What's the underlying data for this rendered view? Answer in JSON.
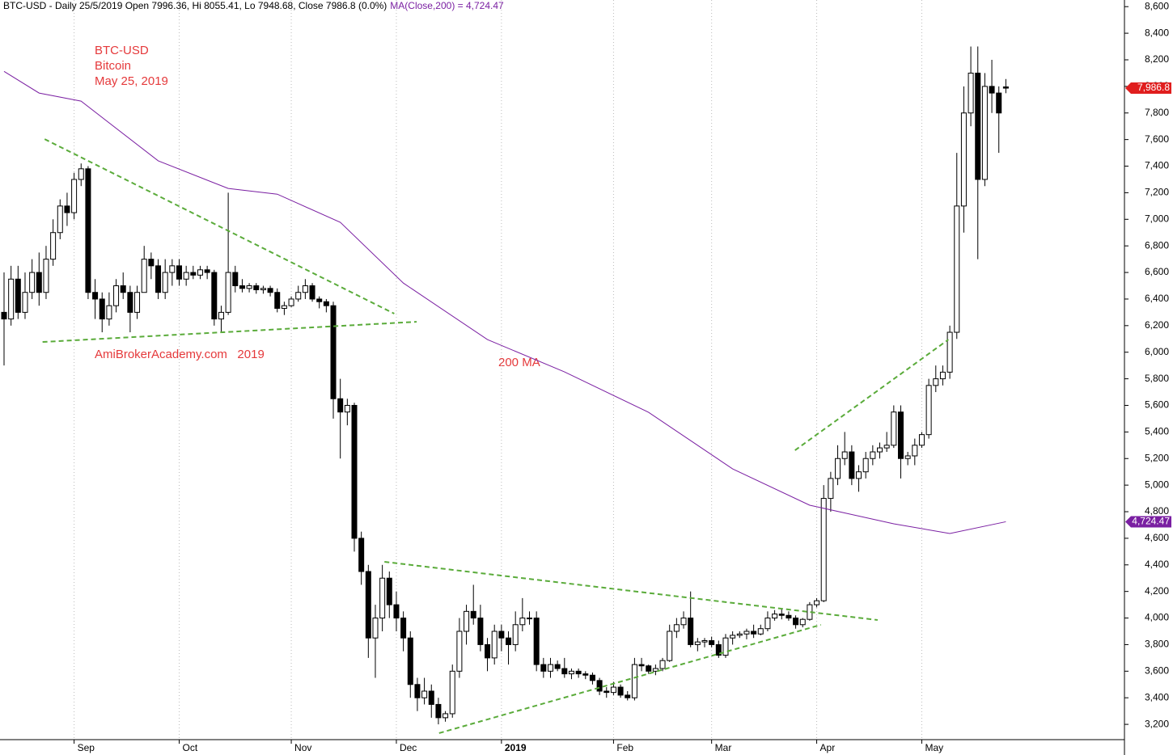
{
  "chart_data": {
    "type": "candlestick",
    "title": "BTC-USD - Daily 25/5/2019 Open 7996.36, Hi 8055.41, Lo 7948.68, Close 7986.8 (0.0%)",
    "title_ma": "MA(Close,200) = 4,724.47",
    "annotations": [
      "BTC-USD",
      "Bitcoin",
      "May 25, 2019",
      "AmiBrokerAcademy.com   2019",
      "200 MA"
    ],
    "categories": [
      null,
      null,
      null,
      null,
      null,
      null,
      null,
      null,
      null,
      null,
      "Sep",
      null,
      null,
      null,
      null,
      null,
      null,
      null,
      null,
      null,
      null,
      null,
      null,
      null,
      null,
      "Oct",
      null,
      null,
      null,
      null,
      null,
      null,
      null,
      null,
      null,
      null,
      null,
      null,
      null,
      null,
      null,
      "Nov",
      null,
      null,
      null,
      null,
      null,
      null,
      null,
      null,
      null,
      null,
      null,
      null,
      null,
      null,
      "Dec",
      null,
      null,
      null,
      null,
      null,
      null,
      null,
      null,
      null,
      null,
      null,
      null,
      null,
      null,
      "2019",
      null,
      null,
      null,
      null,
      null,
      null,
      null,
      null,
      null,
      null,
      null,
      null,
      null,
      null,
      null,
      "Feb",
      null,
      null,
      null,
      null,
      null,
      null,
      null,
      null,
      null,
      null,
      null,
      null,
      null,
      "Mar",
      null,
      null,
      null,
      null,
      null,
      null,
      null,
      null,
      null,
      null,
      null,
      null,
      null,
      null,
      "Apr",
      null,
      null,
      null,
      null,
      null,
      null,
      null,
      null,
      null,
      null,
      null,
      null,
      null,
      null,
      "May",
      null,
      null,
      null,
      null,
      null,
      null,
      null,
      null,
      null,
      null,
      null,
      null
    ],
    "ohlc": [
      [
        6300,
        6600,
        5900,
        6250
      ],
      [
        6250,
        6650,
        6200,
        6550
      ],
      [
        6550,
        6650,
        6250,
        6300
      ],
      [
        6300,
        6600,
        6250,
        6450
      ],
      [
        6450,
        6700,
        6400,
        6600
      ],
      [
        6600,
        6750,
        6350,
        6450
      ],
      [
        6450,
        6800,
        6400,
        6700
      ],
      [
        6700,
        7000,
        6650,
        6900
      ],
      [
        6900,
        7150,
        6850,
        7100
      ],
      [
        7100,
        7200,
        6950,
        7050
      ],
      [
        7050,
        7350,
        7000,
        7300
      ],
      [
        7300,
        7420,
        7250,
        7380
      ],
      [
        7380,
        7400,
        6400,
        6450
      ],
      [
        6450,
        6550,
        6250,
        6400
      ],
      [
        6400,
        6450,
        6150,
        6250
      ],
      [
        6250,
        6450,
        6200,
        6350
      ],
      [
        6350,
        6550,
        6300,
        6500
      ],
      [
        6500,
        6600,
        6400,
        6450
      ],
      [
        6450,
        6500,
        6150,
        6300
      ],
      [
        6300,
        6500,
        6250,
        6450
      ],
      [
        6450,
        6800,
        6450,
        6700
      ],
      [
        6700,
        6750,
        6550,
        6650
      ],
      [
        6650,
        6700,
        6400,
        6450
      ],
      [
        6450,
        6700,
        6400,
        6600
      ],
      [
        6600,
        6700,
        6500,
        6650
      ],
      [
        6650,
        6700,
        6500,
        6550
      ],
      [
        6550,
        6650,
        6500,
        6600
      ],
      [
        6600,
        6650,
        6550,
        6580
      ],
      [
        6580,
        6650,
        6550,
        6620
      ],
      [
        6620,
        6650,
        6550,
        6600
      ],
      [
        6600,
        6620,
        6200,
        6250
      ],
      [
        6250,
        6350,
        6150,
        6300
      ],
      [
        6300,
        7200,
        6280,
        6600
      ],
      [
        6600,
        6650,
        6450,
        6500
      ],
      [
        6500,
        6550,
        6450,
        6480
      ],
      [
        6480,
        6520,
        6450,
        6500
      ],
      [
        6500,
        6520,
        6440,
        6470
      ],
      [
        6470,
        6500,
        6440,
        6480
      ],
      [
        6480,
        6500,
        6420,
        6450
      ],
      [
        6450,
        6480,
        6300,
        6330
      ],
      [
        6330,
        6380,
        6280,
        6350
      ],
      [
        6350,
        6420,
        6340,
        6400
      ],
      [
        6400,
        6500,
        6380,
        6450
      ],
      [
        6450,
        6550,
        6400,
        6500
      ],
      [
        6500,
        6520,
        6380,
        6400
      ],
      [
        6400,
        6420,
        6330,
        6380
      ],
      [
        6380,
        6400,
        6300,
        6350
      ],
      [
        6350,
        6380,
        5500,
        5650
      ],
      [
        5650,
        5800,
        5200,
        5550
      ],
      [
        5550,
        5650,
        5450,
        5600
      ],
      [
        5600,
        5620,
        4500,
        4600
      ],
      [
        4600,
        4650,
        4250,
        4350
      ],
      [
        4350,
        4400,
        3700,
        3850
      ],
      [
        3850,
        4100,
        3550,
        4000
      ],
      [
        4000,
        4400,
        3900,
        4300
      ],
      [
        4300,
        4350,
        4000,
        4100
      ],
      [
        4100,
        4200,
        3900,
        4000
      ],
      [
        4000,
        4050,
        3750,
        3850
      ],
      [
        3850,
        3900,
        3400,
        3500
      ],
      [
        3500,
        3550,
        3300,
        3400
      ],
      [
        3400,
        3550,
        3350,
        3450
      ],
      [
        3450,
        3500,
        3250,
        3350
      ],
      [
        3350,
        3400,
        3200,
        3250
      ],
      [
        3250,
        3300,
        3220,
        3280
      ],
      [
        3280,
        3650,
        3250,
        3600
      ],
      [
        3600,
        4000,
        3550,
        3900
      ],
      [
        3900,
        4100,
        3800,
        4050
      ],
      [
        4050,
        4250,
        3950,
        4000
      ],
      [
        4000,
        4100,
        3750,
        3800
      ],
      [
        3800,
        3850,
        3600,
        3700
      ],
      [
        3700,
        3950,
        3650,
        3900
      ],
      [
        3900,
        3950,
        3750,
        3850
      ],
      [
        3850,
        3900,
        3650,
        3800
      ],
      [
        3800,
        4050,
        3750,
        3950
      ],
      [
        3950,
        4150,
        3900,
        4000
      ],
      [
        4000,
        4050,
        3950,
        4000
      ],
      [
        4000,
        4050,
        3600,
        3650
      ],
      [
        3650,
        3700,
        3550,
        3600
      ],
      [
        3600,
        3700,
        3550,
        3650
      ],
      [
        3650,
        3680,
        3600,
        3620
      ],
      [
        3620,
        3700,
        3550,
        3580
      ],
      [
        3580,
        3620,
        3540,
        3600
      ],
      [
        3600,
        3620,
        3550,
        3580
      ],
      [
        3580,
        3600,
        3540,
        3570
      ],
      [
        3570,
        3590,
        3500,
        3530
      ],
      [
        3530,
        3550,
        3420,
        3450
      ],
      [
        3450,
        3480,
        3400,
        3440
      ],
      [
        3440,
        3520,
        3420,
        3480
      ],
      [
        3480,
        3500,
        3400,
        3420
      ],
      [
        3420,
        3450,
        3380,
        3400
      ],
      [
        3400,
        3700,
        3380,
        3650
      ],
      [
        3650,
        3700,
        3600,
        3640
      ],
      [
        3640,
        3650,
        3580,
        3600
      ],
      [
        3600,
        3650,
        3570,
        3620
      ],
      [
        3620,
        3700,
        3600,
        3680
      ],
      [
        3680,
        3950,
        3670,
        3900
      ],
      [
        3900,
        4000,
        3850,
        3950
      ],
      [
        3950,
        4050,
        3920,
        4000
      ],
      [
        4000,
        4200,
        3780,
        3800
      ],
      [
        3800,
        3850,
        3750,
        3820
      ],
      [
        3820,
        3850,
        3780,
        3830
      ],
      [
        3830,
        3860,
        3780,
        3800
      ],
      [
        3800,
        3830,
        3700,
        3720
      ],
      [
        3720,
        3880,
        3700,
        3850
      ],
      [
        3850,
        3900,
        3800,
        3870
      ],
      [
        3870,
        3900,
        3850,
        3880
      ],
      [
        3880,
        3920,
        3840,
        3900
      ],
      [
        3900,
        3950,
        3850,
        3880
      ],
      [
        3880,
        3950,
        3870,
        3920
      ],
      [
        3920,
        4050,
        3900,
        4000
      ],
      [
        4000,
        4060,
        3980,
        4030
      ],
      [
        4030,
        4070,
        3990,
        4020
      ],
      [
        4020,
        4050,
        3980,
        4000
      ],
      [
        4000,
        4020,
        3920,
        3950
      ],
      [
        3950,
        4000,
        3930,
        3990
      ],
      [
        3990,
        4120,
        3980,
        4100
      ],
      [
        4100,
        4150,
        4080,
        4130
      ],
      [
        4130,
        5000,
        4120,
        4900
      ],
      [
        4900,
        5100,
        4800,
        5050
      ],
      [
        5050,
        5300,
        5000,
        5200
      ],
      [
        5200,
        5400,
        5150,
        5250
      ],
      [
        5250,
        5300,
        5000,
        5050
      ],
      [
        5050,
        5150,
        4950,
        5100
      ],
      [
        5100,
        5250,
        5050,
        5200
      ],
      [
        5200,
        5300,
        5150,
        5250
      ],
      [
        5250,
        5320,
        5200,
        5280
      ],
      [
        5280,
        5400,
        5250,
        5300
      ],
      [
        5300,
        5600,
        5280,
        5550
      ],
      [
        5550,
        5600,
        5050,
        5200
      ],
      [
        5200,
        5250,
        5150,
        5220
      ],
      [
        5220,
        5350,
        5150,
        5300
      ],
      [
        5300,
        5400,
        5280,
        5380
      ],
      [
        5380,
        5800,
        5350,
        5750
      ],
      [
        5750,
        5900,
        5700,
        5800
      ],
      [
        5800,
        5900,
        5750,
        5850
      ],
      [
        5850,
        6200,
        5800,
        6150
      ],
      [
        6150,
        7500,
        6100,
        7100
      ],
      [
        7100,
        8000,
        6900,
        7800
      ],
      [
        7800,
        8300,
        7700,
        8100
      ],
      [
        8100,
        8300,
        6700,
        7300
      ],
      [
        7300,
        8100,
        7250,
        8000
      ],
      [
        8000,
        8200,
        7800,
        7950
      ],
      [
        7950,
        8000,
        7500,
        7800
      ],
      [
        7996.36,
        8055.41,
        7948.68,
        7986.8
      ]
    ],
    "up_color": "#ffffff",
    "down_color": "#000000",
    "ma": {
      "color": "#7a1fa2",
      "x": [
        0,
        5,
        11,
        22,
        32,
        39,
        48,
        57,
        69,
        80,
        92,
        104,
        115,
        127,
        135,
        143
      ],
      "values": [
        8113,
        7950,
        7889,
        7440,
        7232,
        7189,
        6977,
        6520,
        6095,
        5852,
        5548,
        5122,
        4849,
        4709,
        4636,
        4724.47
      ]
    },
    "trendline_color": "#5aab3a",
    "trendlines": [
      {
        "x": [
          5.8,
          55.7
        ],
        "y": [
          7603,
          6290
        ]
      },
      {
        "x": [
          5.5,
          58.9
        ],
        "y": [
          6077,
          6229
        ]
      },
      {
        "x": [
          54.3,
          124.7
        ],
        "y": [
          4423,
          3985
        ]
      },
      {
        "x": [
          62.1,
          116.6
        ],
        "y": [
          3134,
          3949
        ]
      },
      {
        "x": [
          112.9,
          134.8
        ],
        "y": [
          5262,
          6095
        ]
      }
    ],
    "close_label": {
      "value": 7986.8,
      "label": "7,986.8"
    },
    "ma_label": {
      "value": 4724.47,
      "label": "4,724.47"
    },
    "ylim": [
      3085,
      8650
    ],
    "yticks": [
      {
        "value": 3200,
        "label": "3,200"
      },
      {
        "value": 3400,
        "label": "3,400"
      },
      {
        "value": 3600,
        "label": "3,600"
      },
      {
        "value": 3800,
        "label": "3,800"
      },
      {
        "value": 4000,
        "label": "4,000"
      },
      {
        "value": 4200,
        "label": "4,200"
      },
      {
        "value": 4400,
        "label": "4,400"
      },
      {
        "value": 4600,
        "label": "4,600"
      },
      {
        "value": 4800,
        "label": "4,800"
      },
      {
        "value": 5000,
        "label": "5,000"
      },
      {
        "value": 5200,
        "label": "5,200"
      },
      {
        "value": 5400,
        "label": "5,400"
      },
      {
        "value": 5600,
        "label": "5,600"
      },
      {
        "value": 5800,
        "label": "5,800"
      },
      {
        "value": 6000,
        "label": "6,000"
      },
      {
        "value": 6200,
        "label": "6,200"
      },
      {
        "value": 6400,
        "label": "6,400"
      },
      {
        "value": 6600,
        "label": "6,600"
      },
      {
        "value": 6800,
        "label": "6,800"
      },
      {
        "value": 7000,
        "label": "7,000"
      },
      {
        "value": 7200,
        "label": "7,200"
      },
      {
        "value": 7400,
        "label": "7,400"
      },
      {
        "value": 7600,
        "label": "7,600"
      },
      {
        "value": 7800,
        "label": "7,800"
      },
      {
        "value": 8000,
        "label": "8,000"
      },
      {
        "value": 8200,
        "label": "8,200"
      },
      {
        "value": 8400,
        "label": "8,400"
      },
      {
        "value": 8600,
        "label": "8,600"
      }
    ]
  }
}
